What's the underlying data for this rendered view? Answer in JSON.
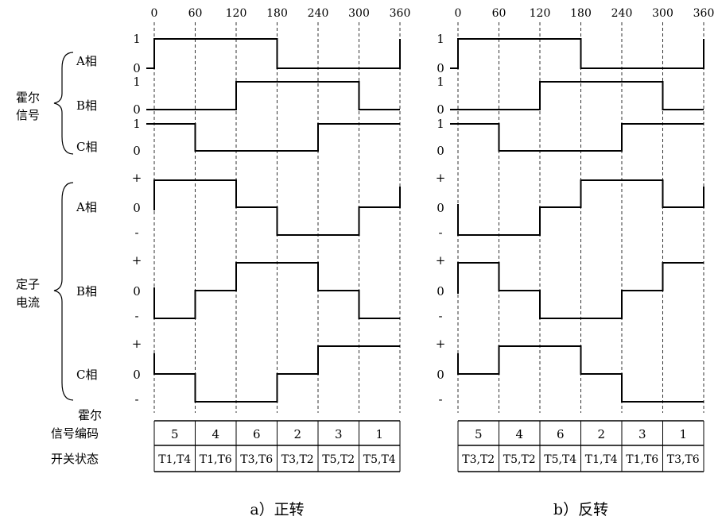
{
  "angle_ticks": [
    "0",
    "60",
    "120",
    "180",
    "240",
    "300",
    "360"
  ],
  "groups": {
    "hall": [
      "霍尔",
      "信号"
    ],
    "stator": [
      "定子",
      "电流"
    ]
  },
  "phase_labels": [
    "A相",
    "B相",
    "C相"
  ],
  "level_labels": {
    "high": "1",
    "low": "0",
    "plus": "+",
    "zero": "0",
    "minus": "-"
  },
  "table_labels": {
    "code": [
      "霍尔",
      "信号编码"
    ],
    "switch": "开关状态"
  },
  "panels": [
    {
      "caption": "a）正转",
      "hall": {
        "A": [
          1,
          1,
          1,
          0,
          0,
          0
        ],
        "B": [
          0,
          0,
          1,
          1,
          1,
          0
        ],
        "C": [
          1,
          0,
          0,
          0,
          1,
          1
        ]
      },
      "current": {
        "A": [
          1,
          1,
          0,
          -1,
          -1,
          0
        ],
        "B": [
          -1,
          0,
          1,
          1,
          0,
          -1
        ],
        "C": [
          0,
          -1,
          -1,
          0,
          1,
          1
        ]
      },
      "codes": [
        "5",
        "4",
        "6",
        "2",
        "3",
        "1"
      ],
      "switches": [
        "T1,T4",
        "T1,T6",
        "T3,T6",
        "T3,T2",
        "T5,T2",
        "T5,T4"
      ]
    },
    {
      "caption": "b）反转",
      "hall": {
        "A": [
          1,
          1,
          1,
          0,
          0,
          0
        ],
        "B": [
          0,
          0,
          1,
          1,
          1,
          0
        ],
        "C": [
          1,
          0,
          0,
          0,
          1,
          1
        ]
      },
      "current": {
        "A": [
          -1,
          -1,
          0,
          1,
          1,
          0
        ],
        "B": [
          1,
          0,
          -1,
          -1,
          0,
          1
        ],
        "C": [
          0,
          1,
          1,
          0,
          -1,
          -1
        ]
      },
      "codes": [
        "5",
        "4",
        "6",
        "2",
        "3",
        "1"
      ],
      "switches": [
        "T3,T2",
        "T5,T2",
        "T5,T4",
        "T1,T4",
        "T1,T6",
        "T3,T6"
      ]
    }
  ]
}
